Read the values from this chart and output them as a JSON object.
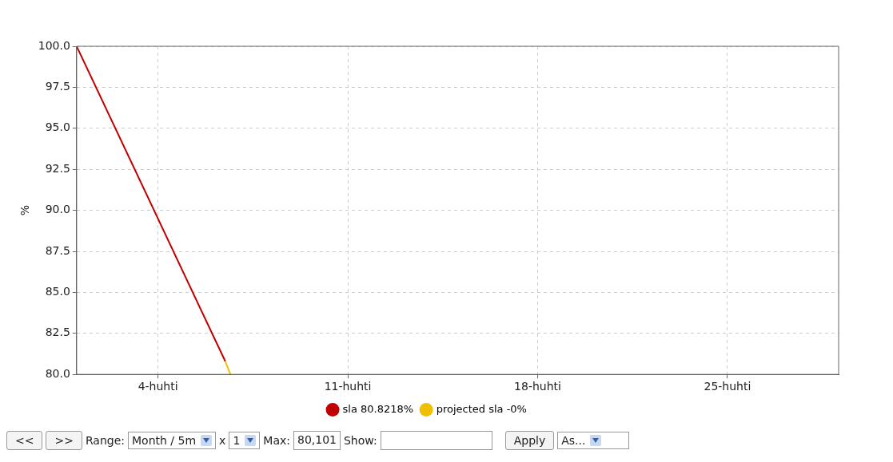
{
  "chart_data": {
    "type": "line",
    "ylabel": "%",
    "xlim": [
      1,
      29.1
    ],
    "xticks": [
      {
        "value": 4,
        "label": "4-huhti"
      },
      {
        "value": 11,
        "label": "11-huhti"
      },
      {
        "value": 18,
        "label": "18-huhti"
      },
      {
        "value": 25,
        "label": "25-huhti"
      }
    ],
    "ylim": [
      80,
      100
    ],
    "yticks": [
      {
        "value": 80,
        "label": "80.0"
      },
      {
        "value": 82.5,
        "label": "82.5"
      },
      {
        "value": 85,
        "label": "85.0"
      },
      {
        "value": 87.5,
        "label": "87.5"
      },
      {
        "value": 90,
        "label": "90.0"
      },
      {
        "value": 92.5,
        "label": "92.5"
      },
      {
        "value": 95,
        "label": "95.0"
      },
      {
        "value": 97.5,
        "label": "97.5"
      },
      {
        "value": 100,
        "label": "100.0"
      }
    ],
    "series": [
      {
        "name": "sla 80.8218%",
        "color": "#c00000",
        "x": [
          1,
          6.48
        ],
        "values": [
          100,
          80.8
        ]
      },
      {
        "name": "projected sla -0%",
        "color": "#f0c000",
        "x": [
          6.48,
          6.67
        ],
        "values": [
          80.8,
          80
        ]
      }
    ],
    "grid": true,
    "legend": "bottom",
    "marker": "none",
    "line_style": "solid",
    "annotations": [
      "<<",
      ">>",
      "Range:",
      "Month / 5m",
      "x",
      "1",
      "Max:",
      "80,101",
      "Show:",
      "Apply",
      "As..."
    ]
  }
}
